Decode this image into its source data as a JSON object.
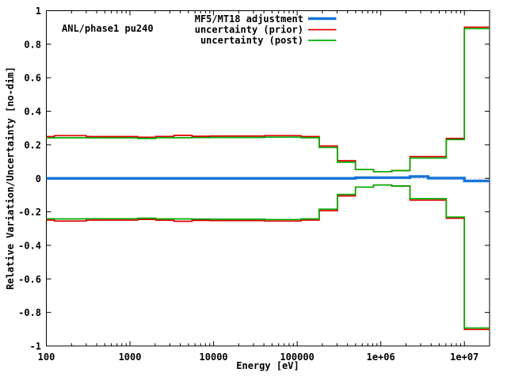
{
  "chart_data": {
    "type": "line",
    "subtype": "step-histogram",
    "title_annotation": "ANL/phase1 pu240",
    "xlabel": "Energy [eV]",
    "ylabel": "Relative Variation/Uncertainty [no-dim]",
    "x_scale": "log",
    "grid": "off",
    "legend_position": "top-right-inside",
    "xlim": [
      100,
      20000000
    ],
    "ylim": [
      -1,
      1
    ],
    "x_ticks": [
      {
        "value": 100,
        "label": "100"
      },
      {
        "value": 1000,
        "label": "1000"
      },
      {
        "value": 10000,
        "label": "10000"
      },
      {
        "value": 100000,
        "label": "100000"
      },
      {
        "value": 1000000,
        "label": "1e+06"
      },
      {
        "value": 10000000,
        "label": "1e+07"
      }
    ],
    "y_ticks": [
      {
        "v": 1,
        "label": "1"
      },
      {
        "v": 0.8,
        "label": "0.8"
      },
      {
        "v": 0.6,
        "label": "0.6"
      },
      {
        "v": 0.4,
        "label": "0.4"
      },
      {
        "v": 0.2,
        "label": "0.2"
      },
      {
        "v": 0,
        "label": "0"
      },
      {
        "v": -0.2,
        "label": "-0.2"
      },
      {
        "v": -0.4,
        "label": "-0.4"
      },
      {
        "v": -0.6,
        "label": "-0.6"
      },
      {
        "v": -0.8,
        "label": "-0.8"
      },
      {
        "v": -1,
        "label": "-1"
      }
    ],
    "colors": {
      "adjustment": "#1874d8",
      "prior": "#e00000",
      "post": "#00ad00",
      "zero_line": "#b8b8b8",
      "frame": "#000000"
    },
    "series": {
      "adjustment": {
        "label": "MF5/MT18 adjustment"
      },
      "prior": {
        "label": "uncertainty (prior)"
      },
      "post": {
        "label": "uncertainty (post)"
      }
    },
    "uncertainty_bins_format": [
      "E_low_eV",
      "E_high_eV",
      "prior_abs",
      "post_abs"
    ],
    "uncertainty_bins": [
      [
        100,
        125,
        0.249,
        0.241
      ],
      [
        125,
        300,
        0.255,
        0.242
      ],
      [
        300,
        1234,
        0.249,
        0.241
      ],
      [
        1234,
        2035,
        0.245,
        0.238
      ],
      [
        2035,
        3355,
        0.25,
        0.242
      ],
      [
        3355,
        5531,
        0.256,
        0.242
      ],
      [
        5531,
        9119,
        0.251,
        0.243
      ],
      [
        9119,
        40870,
        0.252,
        0.244
      ],
      [
        40870,
        111100,
        0.255,
        0.246
      ],
      [
        111100,
        183100,
        0.249,
        0.242
      ],
      [
        183100,
        302500,
        0.193,
        0.184
      ],
      [
        302500,
        497900,
        0.105,
        0.096
      ],
      [
        497900,
        820800,
        0.052,
        0.052
      ],
      [
        820800,
        1353000,
        0.04,
        0.04
      ],
      [
        1353000,
        2231000,
        0.046,
        0.046
      ],
      [
        2231000,
        6065000,
        0.13,
        0.121
      ],
      [
        6065000,
        10000000,
        0.238,
        0.231
      ],
      [
        10000000,
        20000000,
        0.902,
        0.893
      ]
    ],
    "bands_symmetric": true,
    "adjustment_segments_format": [
      "E_low_eV",
      "E_high_eV",
      "value"
    ],
    "adjustment_segments": [
      [
        100,
        497900,
        0.0
      ],
      [
        497900,
        2231000,
        0.004
      ],
      [
        2231000,
        3679000,
        0.011
      ],
      [
        3679000,
        10000000,
        0.001
      ],
      [
        10000000,
        20000000,
        -0.016
      ]
    ]
  }
}
